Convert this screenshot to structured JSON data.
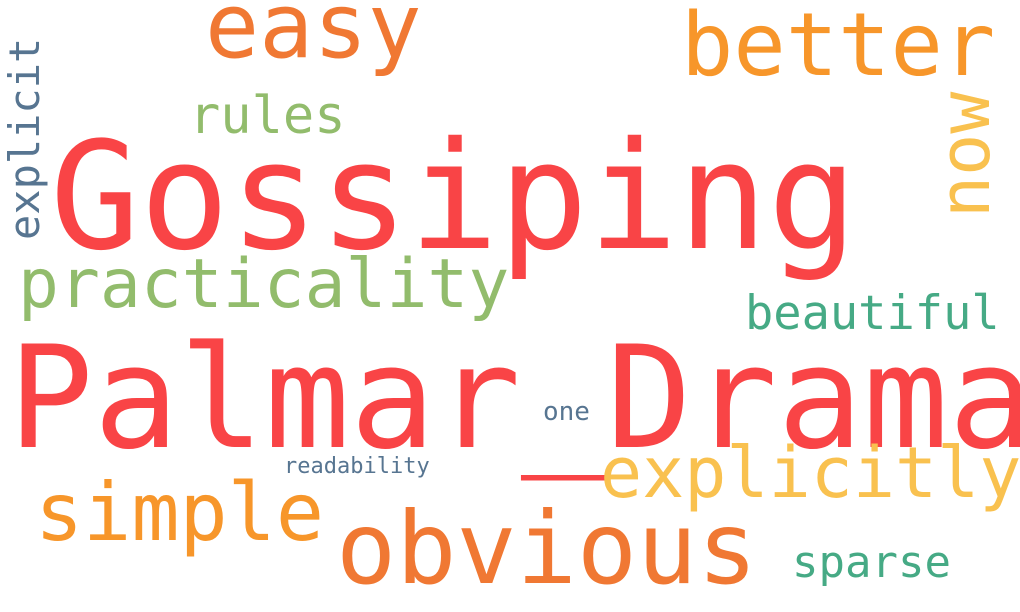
{
  "words": [
    {
      "id": "gossiping",
      "text": "Gossiping",
      "color": "#f94446"
    },
    {
      "id": "palmar-drama",
      "text": "Palmar_Drama",
      "color": "#f94446"
    },
    {
      "id": "easy",
      "text": "easy",
      "color": "#f07833"
    },
    {
      "id": "better",
      "text": "better",
      "color": "#f7962a"
    },
    {
      "id": "now",
      "text": "now",
      "color": "#f9c14f"
    },
    {
      "id": "rules",
      "text": "rules",
      "color": "#92bc6c"
    },
    {
      "id": "explicit",
      "text": "explicit",
      "color": "#577591"
    },
    {
      "id": "practicality",
      "text": "practicality",
      "color": "#92bc6c"
    },
    {
      "id": "beautiful",
      "text": "beautiful",
      "color": "#46aa85"
    },
    {
      "id": "one",
      "text": "one",
      "color": "#577591"
    },
    {
      "id": "explicitly",
      "text": "explicitly",
      "color": "#f9c14f"
    },
    {
      "id": "readability",
      "text": "readability",
      "color": "#577591"
    },
    {
      "id": "simple",
      "text": "simple",
      "color": "#f7962a"
    },
    {
      "id": "obvious",
      "text": "obvious",
      "color": "#f07833"
    },
    {
      "id": "sparse",
      "text": "sparse",
      "color": "#46aa85"
    }
  ]
}
